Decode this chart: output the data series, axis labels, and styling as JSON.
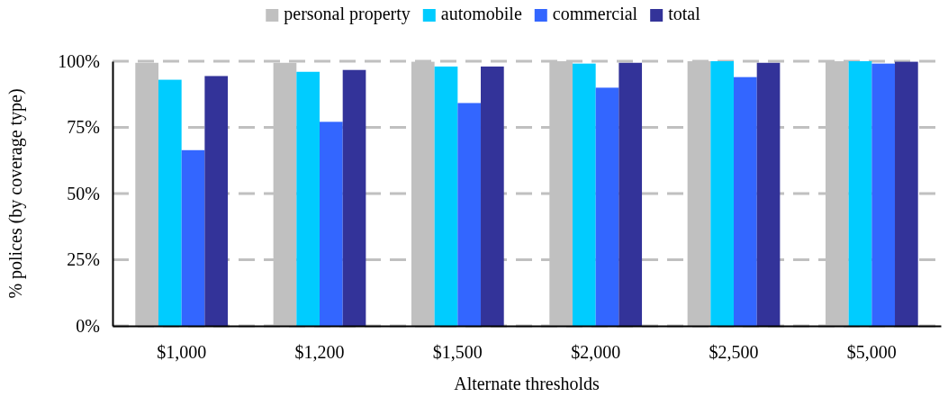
{
  "chart_data": {
    "type": "bar",
    "xlabel": "Alternate thresholds",
    "ylabel": "% polices (by coverage type)",
    "categories": [
      "$1,000",
      "$1,200",
      "$1,500",
      "$2,000",
      "$2,500",
      "$5,000"
    ],
    "series": [
      {
        "name": "personal property",
        "color": "#c0c0c0",
        "values": [
          99.4,
          99.4,
          99.8,
          100,
          100,
          100
        ]
      },
      {
        "name": "automobile",
        "color": "#00ccff",
        "values": [
          93,
          96,
          98,
          99.1,
          100,
          100
        ]
      },
      {
        "name": "commercial",
        "color": "#3366ff",
        "values": [
          66.4,
          77.1,
          84.2,
          90,
          94,
          99.1
        ]
      },
      {
        "name": "total",
        "color": "#333399",
        "values": [
          94.4,
          96.7,
          98,
          99.4,
          99.4,
          99.8
        ]
      }
    ],
    "ylim": [
      0,
      100
    ],
    "yticks": [
      {
        "value": 0,
        "label": "0%"
      },
      {
        "value": 25,
        "label": "25%"
      },
      {
        "value": 50,
        "label": "50%"
      },
      {
        "value": 75,
        "label": "75%"
      },
      {
        "value": 100,
        "label": "100%"
      }
    ],
    "grid": "y",
    "legend": "top"
  }
}
